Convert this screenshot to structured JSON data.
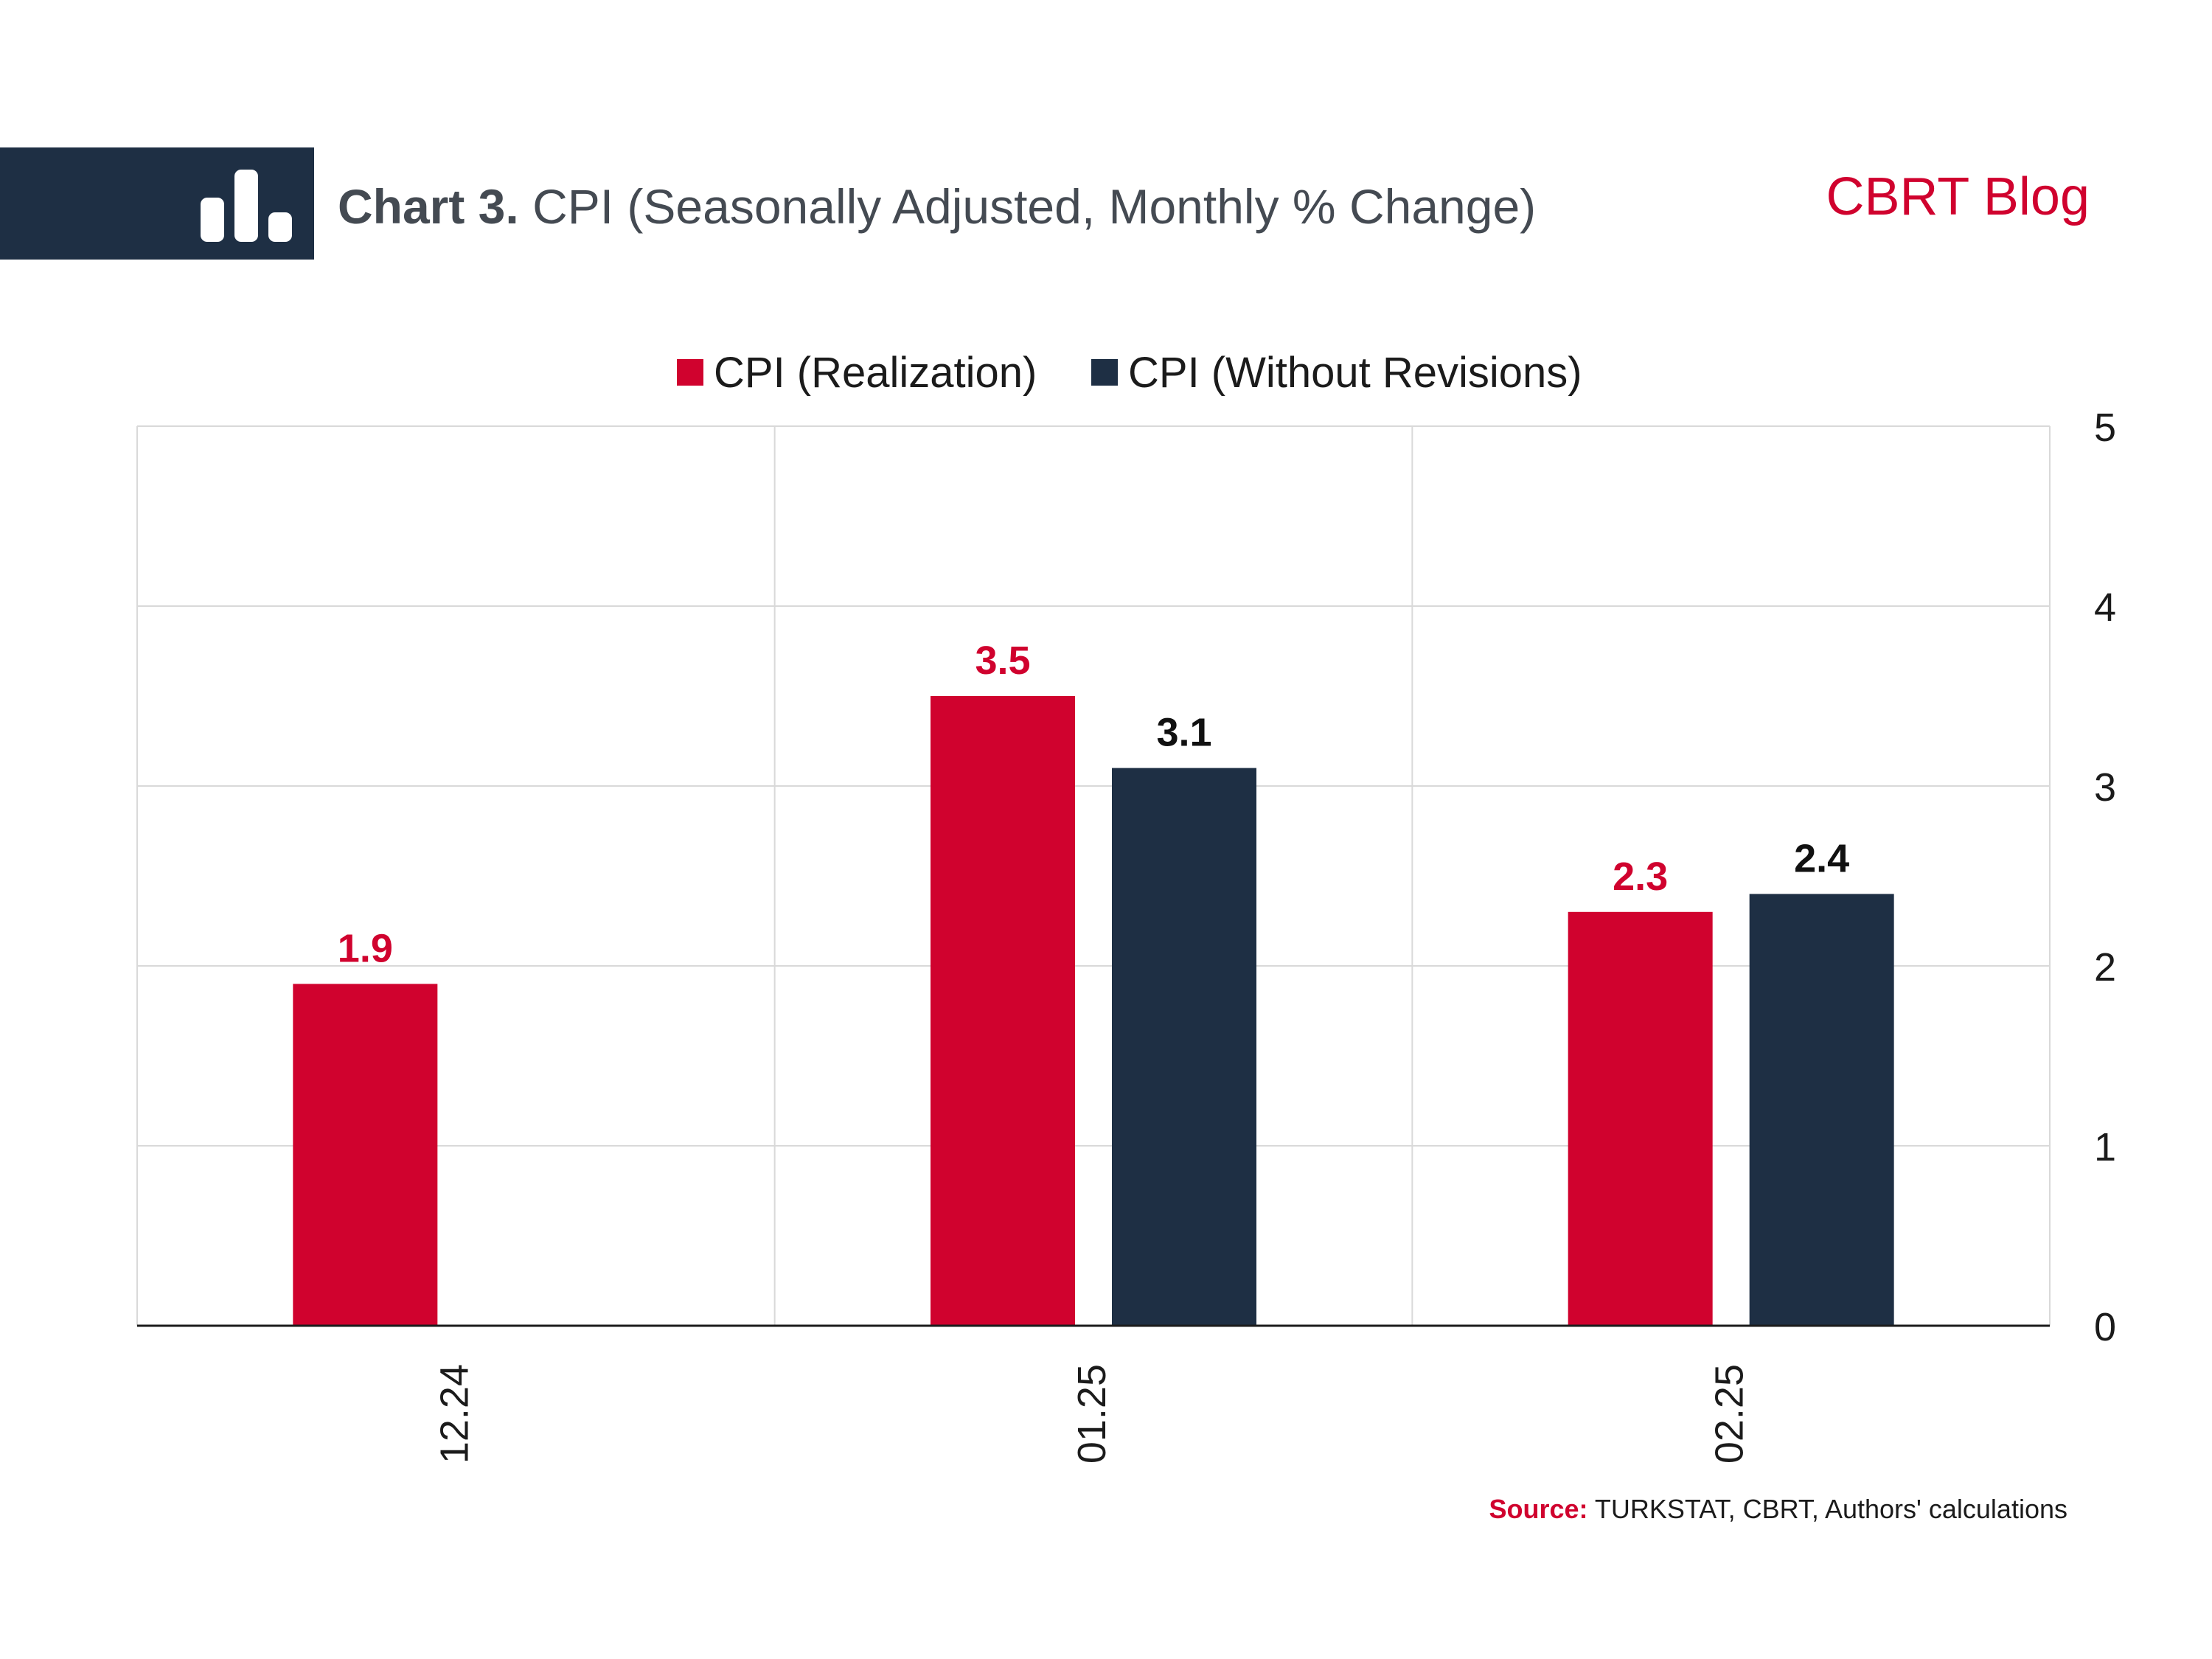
{
  "header": {
    "title_bold": "Chart 3.",
    "title_rest": " CPI (Seasonally Adjusted, Monthly % Change)",
    "brand": "CBRT Blog",
    "icon": "bar-chart-icon"
  },
  "source": {
    "label": "Source:",
    "text": " TURKSTAT, CBRT, Authors' calculations"
  },
  "colors": {
    "realization": "#d0022e",
    "without_revisions": "#1e2f44",
    "header_box": "#1e2f44"
  },
  "chart_data": {
    "type": "bar",
    "title": "Chart 3. CPI (Seasonally Adjusted, Monthly % Change)",
    "categories": [
      "12.24",
      "01.25",
      "02.25"
    ],
    "series": [
      {
        "name": "CPI (Realization)",
        "values": [
          1.9,
          3.5,
          2.3
        ],
        "labels": [
          "1.9",
          "3.5",
          "2.3"
        ]
      },
      {
        "name": "CPI (Without Revisions)",
        "values": [
          null,
          3.1,
          2.4
        ],
        "labels": [
          "",
          "3.1",
          "2.4"
        ]
      }
    ],
    "ylim": [
      0,
      5
    ],
    "yticks": [
      "0",
      "1",
      "2",
      "3",
      "4",
      "5"
    ],
    "y_axis_side": "right",
    "xlabel": "",
    "ylabel": "",
    "grid": true,
    "legend_position": "top-center"
  }
}
